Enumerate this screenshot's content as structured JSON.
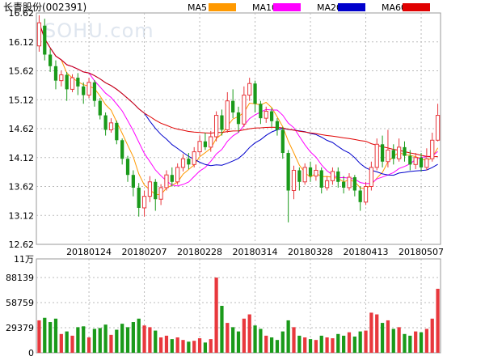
{
  "header": {
    "name": "长青股份",
    "code": "(002391)",
    "legend": [
      {
        "label": "MA5",
        "color": "#ff9900"
      },
      {
        "label": "MA10",
        "color": "#ff00ff"
      },
      {
        "label": "MA20",
        "color": "#0000cc"
      },
      {
        "label": "MA60",
        "color": "#e00000"
      }
    ]
  },
  "watermark": "SOHU.com",
  "colors": {
    "up": "#e8383d",
    "down": "#1a9a1a",
    "grid": "#bbbbbb"
  },
  "chart_data": {
    "type": "candlestick",
    "price_axis": {
      "range": [
        12.62,
        16.62
      ],
      "ticks": [
        "16.62",
        "16.12",
        "15.62",
        "15.12",
        "14.62",
        "14.12",
        "13.62",
        "13.12",
        "12.62"
      ]
    },
    "volume_axis": {
      "range": [
        0,
        110000
      ],
      "unit_label": "11万",
      "ticks": [
        "88139",
        "58759",
        "29379",
        "0"
      ]
    },
    "date_labels": [
      {
        "label": "20180124",
        "index": 9
      },
      {
        "label": "20180207",
        "index": 19
      },
      {
        "label": "20180228",
        "index": 29
      },
      {
        "label": "20180314",
        "index": 39
      },
      {
        "label": "20180328",
        "index": 49
      },
      {
        "label": "20180413",
        "index": 59
      },
      {
        "label": "20180507",
        "index": 69
      }
    ],
    "candles": [
      [
        16.05,
        16.45,
        16.58,
        15.95,
        38000
      ],
      [
        16.4,
        15.9,
        16.52,
        15.8,
        41000
      ],
      [
        15.9,
        15.7,
        16.0,
        15.6,
        36000
      ],
      [
        15.7,
        15.45,
        15.8,
        15.3,
        40000
      ],
      [
        15.45,
        15.55,
        15.62,
        15.35,
        22000
      ],
      [
        15.55,
        15.3,
        15.6,
        15.1,
        25000
      ],
      [
        15.3,
        15.5,
        15.56,
        15.25,
        20000
      ],
      [
        15.5,
        15.35,
        15.58,
        15.2,
        30000
      ],
      [
        15.35,
        15.2,
        15.42,
        15.05,
        31000
      ],
      [
        15.2,
        15.42,
        15.5,
        15.15,
        18000
      ],
      [
        15.42,
        15.1,
        15.46,
        15.0,
        28000
      ],
      [
        15.1,
        14.85,
        15.15,
        14.78,
        29000
      ],
      [
        14.85,
        14.6,
        14.9,
        14.5,
        33000
      ],
      [
        14.6,
        14.72,
        14.8,
        14.55,
        21000
      ],
      [
        14.72,
        14.42,
        14.76,
        14.35,
        27000
      ],
      [
        14.42,
        14.1,
        14.45,
        14.0,
        34000
      ],
      [
        14.1,
        13.82,
        14.15,
        13.7,
        30000
      ],
      [
        13.82,
        13.6,
        13.9,
        13.45,
        36000
      ],
      [
        13.6,
        13.25,
        13.68,
        13.1,
        40000
      ],
      [
        13.25,
        13.45,
        13.55,
        13.1,
        32000
      ],
      [
        13.45,
        13.7,
        13.8,
        13.35,
        30000
      ],
      [
        13.7,
        13.4,
        13.75,
        13.2,
        26000
      ],
      [
        13.4,
        13.6,
        13.66,
        13.3,
        18000
      ],
      [
        13.6,
        13.82,
        13.9,
        13.55,
        20000
      ],
      [
        13.82,
        13.7,
        13.95,
        13.62,
        16000
      ],
      [
        13.7,
        13.95,
        14.02,
        13.65,
        18000
      ],
      [
        13.95,
        14.1,
        14.18,
        13.88,
        15000
      ],
      [
        14.1,
        14.0,
        14.2,
        13.92,
        13000
      ],
      [
        14.0,
        14.22,
        14.3,
        13.95,
        14000
      ],
      [
        14.22,
        14.4,
        14.5,
        14.15,
        17000
      ],
      [
        14.4,
        14.3,
        14.55,
        14.25,
        12000
      ],
      [
        14.3,
        14.48,
        14.58,
        14.22,
        16000
      ],
      [
        14.48,
        14.85,
        14.92,
        14.4,
        88139
      ],
      [
        14.85,
        14.6,
        14.95,
        14.5,
        55000
      ],
      [
        14.6,
        15.1,
        15.25,
        14.55,
        35000
      ],
      [
        15.1,
        14.9,
        15.3,
        14.8,
        30000
      ],
      [
        14.9,
        14.7,
        15.0,
        14.55,
        25000
      ],
      [
        14.7,
        15.2,
        15.35,
        14.65,
        40000
      ],
      [
        15.2,
        15.4,
        15.5,
        15.1,
        45000
      ],
      [
        15.4,
        15.05,
        15.45,
        14.9,
        32000
      ],
      [
        15.05,
        14.8,
        15.1,
        14.7,
        28000
      ],
      [
        14.8,
        14.92,
        15.0,
        14.72,
        20000
      ],
      [
        14.92,
        14.75,
        14.98,
        14.65,
        18000
      ],
      [
        14.75,
        14.6,
        14.8,
        14.5,
        15000
      ],
      [
        14.6,
        14.2,
        14.65,
        14.1,
        25000
      ],
      [
        14.2,
        13.55,
        14.25,
        13.0,
        38000
      ],
      [
        13.55,
        13.9,
        13.98,
        13.4,
        30000
      ],
      [
        13.9,
        13.7,
        13.95,
        13.55,
        20000
      ],
      [
        13.7,
        13.95,
        14.02,
        13.65,
        18000
      ],
      [
        13.95,
        13.8,
        14.05,
        13.7,
        16000
      ],
      [
        13.8,
        13.9,
        14.0,
        13.72,
        15000
      ],
      [
        13.9,
        13.6,
        13.95,
        13.5,
        20000
      ],
      [
        13.6,
        13.72,
        13.8,
        13.55,
        18000
      ],
      [
        13.72,
        13.88,
        13.95,
        13.65,
        17000
      ],
      [
        13.88,
        13.7,
        13.95,
        13.6,
        22000
      ],
      [
        13.7,
        13.6,
        13.8,
        13.5,
        20000
      ],
      [
        13.6,
        13.78,
        13.85,
        13.55,
        24000
      ],
      [
        13.78,
        13.55,
        13.82,
        13.45,
        19000
      ],
      [
        13.55,
        13.35,
        13.62,
        13.2,
        25000
      ],
      [
        13.35,
        13.62,
        13.7,
        13.3,
        26000
      ],
      [
        13.62,
        13.95,
        14.05,
        13.55,
        47000
      ],
      [
        13.95,
        14.35,
        14.45,
        13.9,
        45000
      ],
      [
        14.35,
        14.05,
        14.5,
        13.95,
        35000
      ],
      [
        14.05,
        14.25,
        14.6,
        13.95,
        38000
      ],
      [
        14.25,
        14.1,
        14.35,
        14.0,
        28000
      ],
      [
        14.1,
        14.3,
        14.45,
        14.05,
        30000
      ],
      [
        14.3,
        14.15,
        14.4,
        14.05,
        22000
      ],
      [
        14.15,
        14.0,
        14.25,
        13.9,
        20000
      ],
      [
        14.0,
        14.12,
        14.2,
        13.92,
        25000
      ],
      [
        14.12,
        13.95,
        14.2,
        13.88,
        24000
      ],
      [
        13.95,
        14.1,
        14.28,
        13.9,
        28000
      ],
      [
        14.1,
        14.42,
        14.55,
        14.05,
        40000
      ],
      [
        14.42,
        14.85,
        15.05,
        14.4,
        75000
      ]
    ]
  }
}
